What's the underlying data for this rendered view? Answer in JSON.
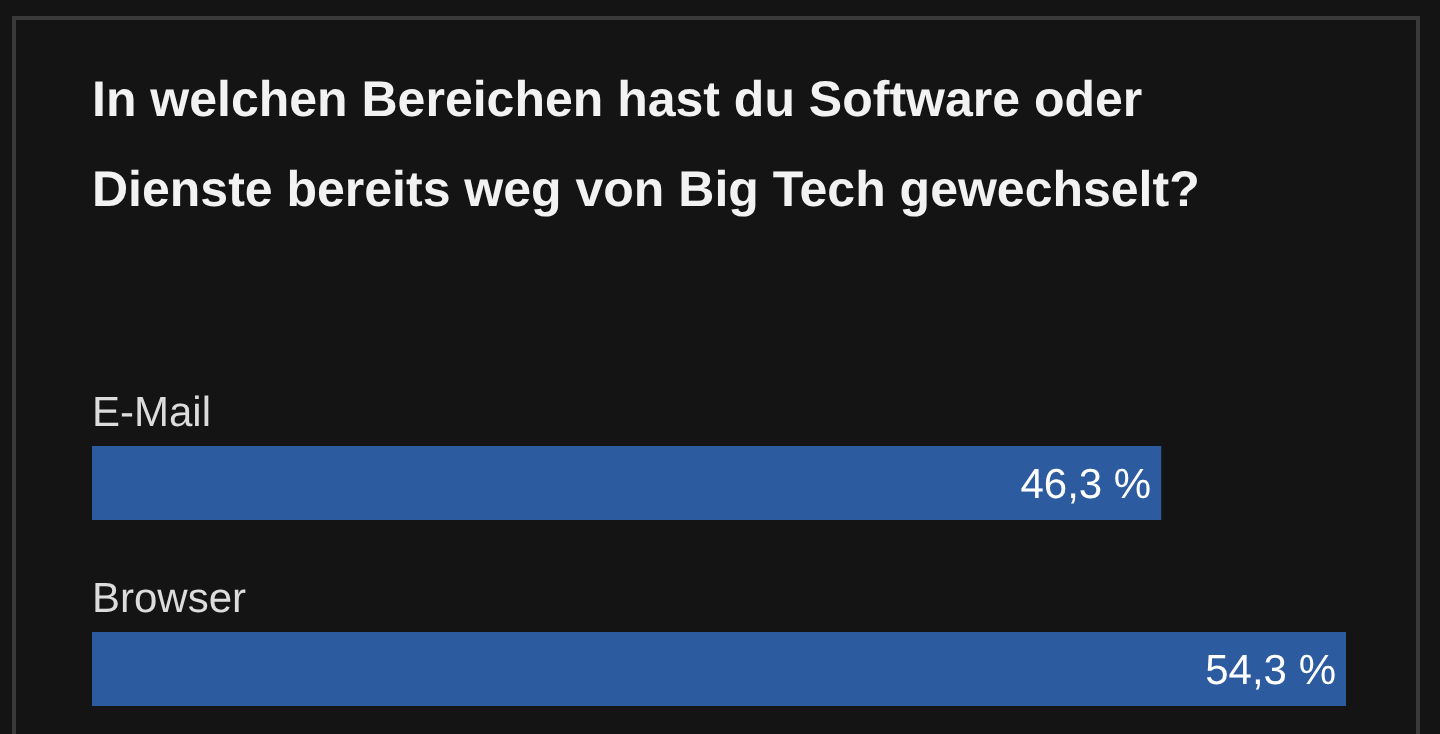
{
  "chart_data": {
    "type": "bar",
    "orientation": "horizontal",
    "title": "In welchen Bereichen hast du Software oder Dienste bereits weg von Big Tech gewechselt?",
    "categories": [
      "E-Mail",
      "Browser"
    ],
    "series": [
      {
        "color": "#2d5b9f",
        "values": [
          46.3,
          54.3
        ],
        "value_labels": [
          "46,3 %",
          "54,3 %"
        ]
      }
    ],
    "relative": false,
    "legend": false,
    "grid": false
  }
}
